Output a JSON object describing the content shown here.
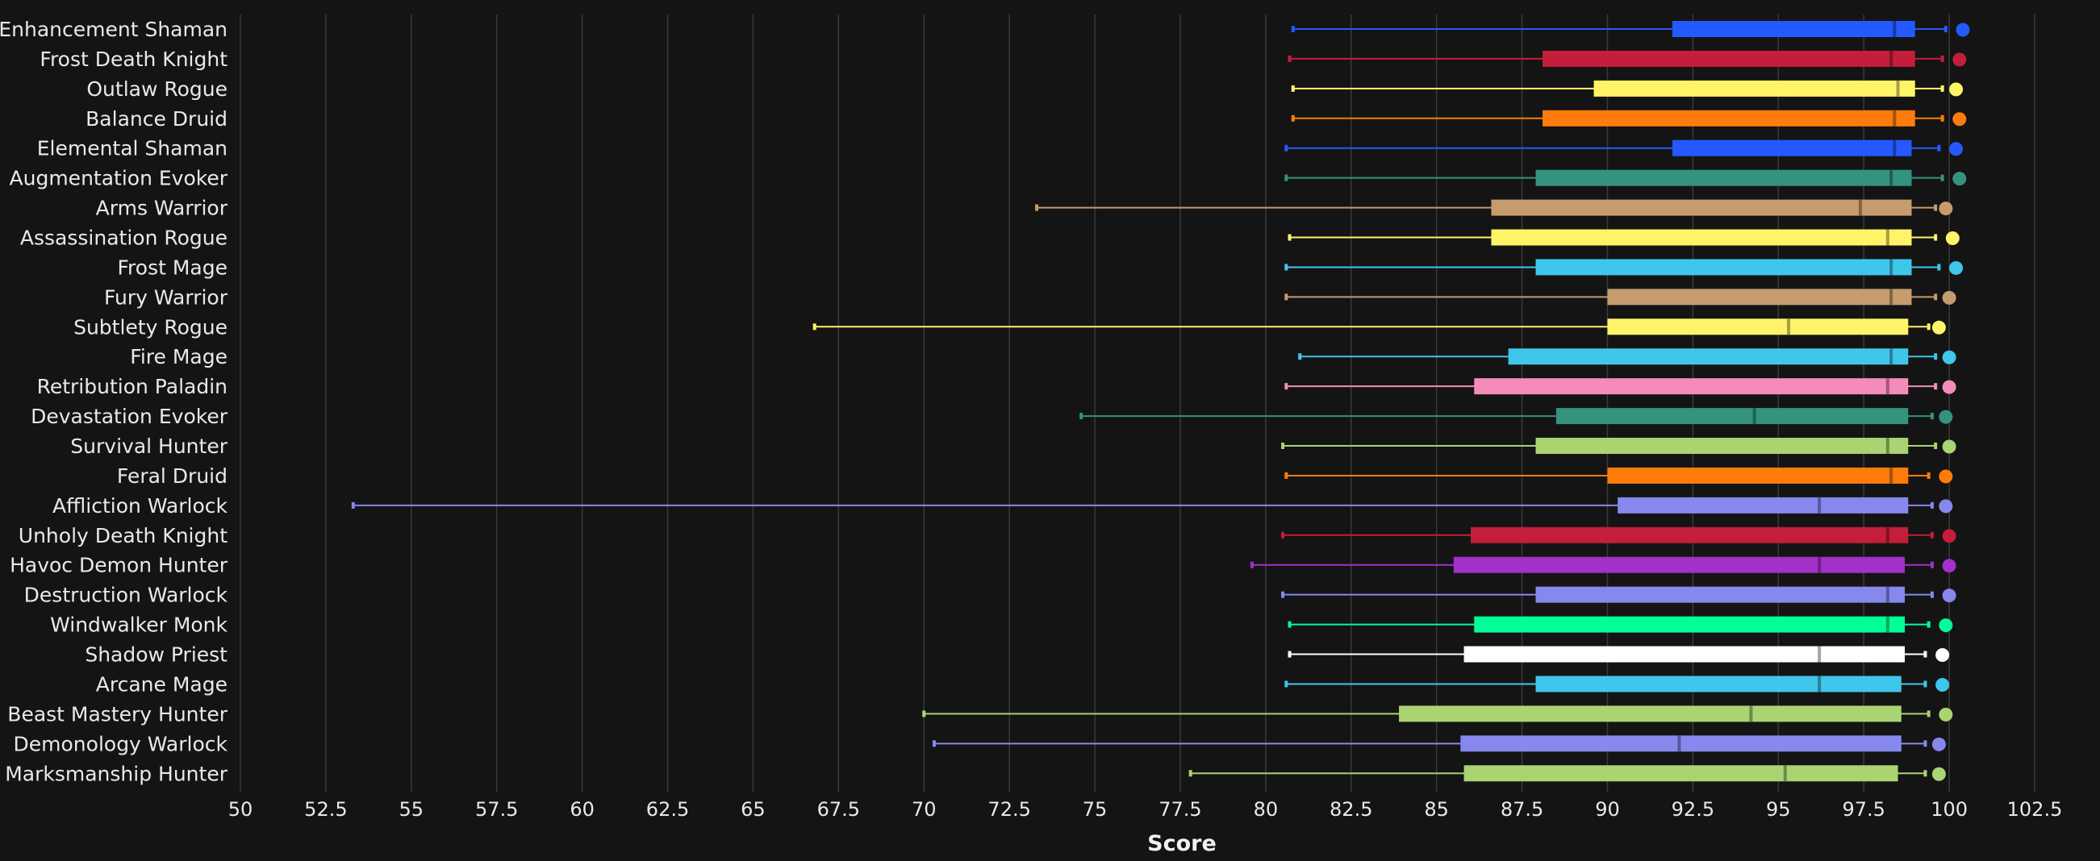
{
  "chart_data": {
    "type": "boxplot",
    "xlabel": "Score",
    "xlim": [
      50,
      102.5
    ],
    "xticks": [
      50,
      52.5,
      55,
      57.5,
      60,
      62.5,
      65,
      67.5,
      70,
      72.5,
      75,
      77.5,
      80,
      82.5,
      85,
      87.5,
      90,
      92.5,
      95,
      97.5,
      100,
      102.5
    ],
    "xtick_labels": [
      "50",
      "52.5",
      "55",
      "57.5",
      "60",
      "62.5",
      "65",
      "67.5",
      "70",
      "72.5",
      "75",
      "77.5",
      "80",
      "82.5",
      "85",
      "87.5",
      "90",
      "92.5",
      "95",
      "97.5",
      "100",
      "102.5"
    ],
    "grid": "vertical",
    "series": [
      {
        "name": "Enhancement Shaman",
        "color": "#2459FF",
        "min": 80.8,
        "q1": 91.9,
        "median": 98.4,
        "q3": 99.0,
        "max": 99.9,
        "max_point": 100.4
      },
      {
        "name": "Frost Death Knight",
        "color": "#C41E3A",
        "min": 80.7,
        "q1": 88.1,
        "median": 98.3,
        "q3": 99.0,
        "max": 99.8,
        "max_point": 100.3
      },
      {
        "name": "Outlaw Rogue",
        "color": "#FFF468",
        "min": 80.8,
        "q1": 89.6,
        "median": 98.5,
        "q3": 99.0,
        "max": 99.8,
        "max_point": 100.2
      },
      {
        "name": "Balance Druid",
        "color": "#FF7C0A",
        "min": 80.8,
        "q1": 88.1,
        "median": 98.4,
        "q3": 99.0,
        "max": 99.8,
        "max_point": 100.3
      },
      {
        "name": "Elemental Shaman",
        "color": "#2459FF",
        "min": 80.6,
        "q1": 91.9,
        "median": 98.4,
        "q3": 98.9,
        "max": 99.7,
        "max_point": 100.2
      },
      {
        "name": "Augmentation Evoker",
        "color": "#33937F",
        "min": 80.6,
        "q1": 87.9,
        "median": 98.3,
        "q3": 98.9,
        "max": 99.8,
        "max_point": 100.3
      },
      {
        "name": "Arms Warrior",
        "color": "#C69B6D",
        "min": 73.3,
        "q1": 86.6,
        "median": 97.4,
        "q3": 98.9,
        "max": 99.6,
        "max_point": 99.9
      },
      {
        "name": "Assassination Rogue",
        "color": "#FFF468",
        "min": 80.7,
        "q1": 86.6,
        "median": 98.2,
        "q3": 98.9,
        "max": 99.6,
        "max_point": 100.1
      },
      {
        "name": "Frost Mage",
        "color": "#3FC7EB",
        "min": 80.6,
        "q1": 87.9,
        "median": 98.3,
        "q3": 98.9,
        "max": 99.7,
        "max_point": 100.2
      },
      {
        "name": "Fury Warrior",
        "color": "#C69B6D",
        "min": 80.6,
        "q1": 90.0,
        "median": 98.3,
        "q3": 98.9,
        "max": 99.6,
        "max_point": 100.0
      },
      {
        "name": "Subtlety Rogue",
        "color": "#FFF468",
        "min": 66.8,
        "q1": 90.0,
        "median": 95.3,
        "q3": 98.8,
        "max": 99.4,
        "max_point": 99.7
      },
      {
        "name": "Fire Mage",
        "color": "#3FC7EB",
        "min": 81.0,
        "q1": 87.1,
        "median": 98.3,
        "q3": 98.8,
        "max": 99.6,
        "max_point": 100.0
      },
      {
        "name": "Retribution Paladin",
        "color": "#F48CBA",
        "min": 80.6,
        "q1": 86.1,
        "median": 98.2,
        "q3": 98.8,
        "max": 99.6,
        "max_point": 100.0
      },
      {
        "name": "Devastation Evoker",
        "color": "#33937F",
        "min": 74.6,
        "q1": 88.5,
        "median": 94.3,
        "q3": 98.8,
        "max": 99.5,
        "max_point": 99.9
      },
      {
        "name": "Survival Hunter",
        "color": "#AAD372",
        "min": 80.5,
        "q1": 87.9,
        "median": 98.2,
        "q3": 98.8,
        "max": 99.6,
        "max_point": 100.0
      },
      {
        "name": "Feral Druid",
        "color": "#FF7C0A",
        "min": 80.6,
        "q1": 90.0,
        "median": 98.3,
        "q3": 98.8,
        "max": 99.4,
        "max_point": 99.9
      },
      {
        "name": "Affliction Warlock",
        "color": "#8788EE",
        "min": 53.3,
        "q1": 90.3,
        "median": 96.2,
        "q3": 98.8,
        "max": 99.5,
        "max_point": 99.9
      },
      {
        "name": "Unholy Death Knight",
        "color": "#C41E3A",
        "min": 80.5,
        "q1": 86.0,
        "median": 98.2,
        "q3": 98.8,
        "max": 99.5,
        "max_point": 100.0
      },
      {
        "name": "Havoc Demon Hunter",
        "color": "#A330C9",
        "min": 79.6,
        "q1": 85.5,
        "median": 96.2,
        "q3": 98.7,
        "max": 99.5,
        "max_point": 100.0
      },
      {
        "name": "Destruction Warlock",
        "color": "#8788EE",
        "min": 80.5,
        "q1": 87.9,
        "median": 98.2,
        "q3": 98.7,
        "max": 99.5,
        "max_point": 100.0
      },
      {
        "name": "Windwalker Monk",
        "color": "#00FF98",
        "min": 80.7,
        "q1": 86.1,
        "median": 98.2,
        "q3": 98.7,
        "max": 99.4,
        "max_point": 99.9
      },
      {
        "name": "Shadow Priest",
        "color": "#FFFFFF",
        "min": 80.7,
        "q1": 85.8,
        "median": 96.2,
        "q3": 98.7,
        "max": 99.3,
        "max_point": 99.8
      },
      {
        "name": "Arcane Mage",
        "color": "#3FC7EB",
        "min": 80.6,
        "q1": 87.9,
        "median": 96.2,
        "q3": 98.6,
        "max": 99.3,
        "max_point": 99.8
      },
      {
        "name": "Beast Mastery Hunter",
        "color": "#AAD372",
        "min": 70.0,
        "q1": 83.9,
        "median": 94.2,
        "q3": 98.6,
        "max": 99.4,
        "max_point": 99.9
      },
      {
        "name": "Demonology Warlock",
        "color": "#8788EE",
        "min": 70.3,
        "q1": 85.7,
        "median": 92.1,
        "q3": 98.6,
        "max": 99.3,
        "max_point": 99.7
      },
      {
        "name": "Marksmanship Hunter",
        "color": "#AAD372",
        "min": 77.8,
        "q1": 85.8,
        "median": 95.2,
        "q3": 98.5,
        "max": 99.3,
        "max_point": 99.7
      }
    ]
  }
}
